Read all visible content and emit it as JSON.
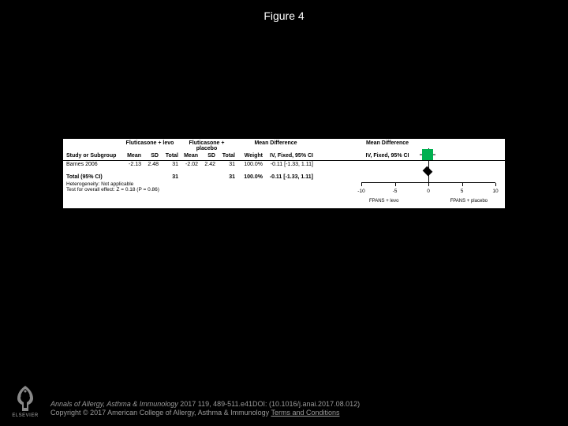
{
  "figure_title": "Figure 4",
  "forest": {
    "group1_label": "Fluticasone + levo",
    "group2_label": "Fluticasone + placebo",
    "col_study": "Study or Subgroup",
    "col_mean": "Mean",
    "col_sd": "SD",
    "col_total": "Total",
    "col_weight": "Weight",
    "col_md_header": "Mean Difference",
    "col_ci": "IV, Fixed, 95% CI",
    "row": {
      "study": "Barnes 2006",
      "g1_mean": "-2.13",
      "g1_sd": "2.48",
      "g1_total": "31",
      "g2_mean": "-2.02",
      "g2_sd": "2.42",
      "g2_total": "31",
      "weight": "100.0%",
      "ci": "-0.11 [-1.33, 1.11]"
    },
    "total": {
      "label": "Total (95% CI)",
      "g1_total": "31",
      "g2_total": "31",
      "weight": "100.0%",
      "ci": "-0.11 [-1.33, 1.11]"
    },
    "heterogeneity": "Heterogeneity: Not applicable",
    "overall_effect": "Test for overall effect: Z = 0.18 (P = 0.86)",
    "axis": {
      "min": -10,
      "max": 10,
      "ticks": [
        -10,
        -5,
        0,
        5,
        10
      ],
      "left_label": "FPANS + levo",
      "right_label": "FPANS + placebo"
    },
    "marker_color": "#00b050",
    "point_estimate": -0.11,
    "ci_low": -1.33,
    "ci_high": 1.11
  },
  "footer": {
    "citation_journal": "Annals of Allergy, Asthma & Immunology",
    "citation_rest": " 2017 119, 489-511.e41DOI: (10.1016/j.anai.2017.08.012)",
    "copyright": "Copyright © 2017 American College of Allergy, Asthma & Immunology ",
    "terms": "Terms and Conditions",
    "logo_label": "ELSEVIER"
  }
}
